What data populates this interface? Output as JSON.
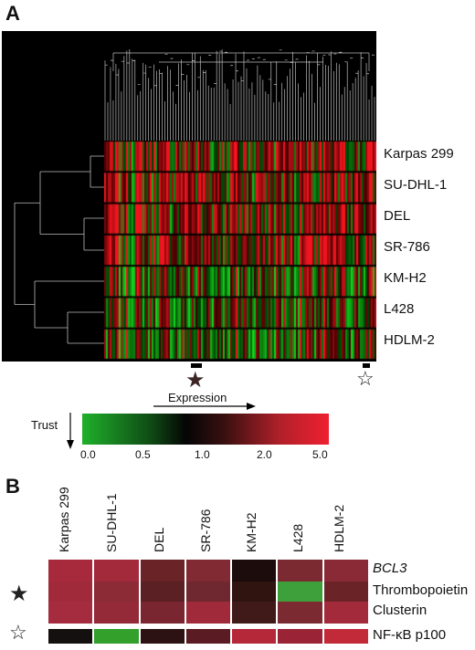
{
  "panel_a": {
    "label": "A",
    "row_labels": [
      "Karpas 299",
      "SU-DHL-1",
      "DEL",
      "SR-786",
      "KM-H2",
      "L428",
      "HDLM-2"
    ]
  },
  "scale": {
    "expression_label": "Expression",
    "trust_label": "Trust",
    "ticks": [
      "0.0",
      "0.5",
      "1.0",
      "2.0",
      "5.0"
    ],
    "low_color": "#1fb02b",
    "mid_color": "#050505",
    "high_color": "#ef2030"
  },
  "panel_b": {
    "label": "B",
    "column_labels": [
      "Karpas 299",
      "SU-DHL-1",
      "DEL",
      "SR-786",
      "KM-H2",
      "L428",
      "HDLM-2"
    ],
    "group1_genes": [
      "BCL3",
      "Thrombopoietin",
      "Clusterin"
    ],
    "group2_genes": [
      "NF-κB p100"
    ],
    "cells": [
      [
        "#a72a3c",
        "#a22a3b",
        "#6a2428",
        "#822a33",
        "#1c0c0c",
        "#7a2a30",
        "#8a2a36"
      ],
      [
        "#a02a3a",
        "#8c2a36",
        "#5a2024",
        "#702830",
        "#301410",
        "#3ea03a",
        "#6a2428"
      ],
      [
        "#a52c3e",
        "#942a38",
        "#7a2630",
        "#a02a3a",
        "#401a18",
        "#7a2a30",
        "#a22a3b"
      ],
      [
        "#141010",
        "#33a02c",
        "#2c1212",
        "#5a1c22",
        "#b4283a",
        "#9a2436",
        "#c22a3a"
      ]
    ]
  }
}
